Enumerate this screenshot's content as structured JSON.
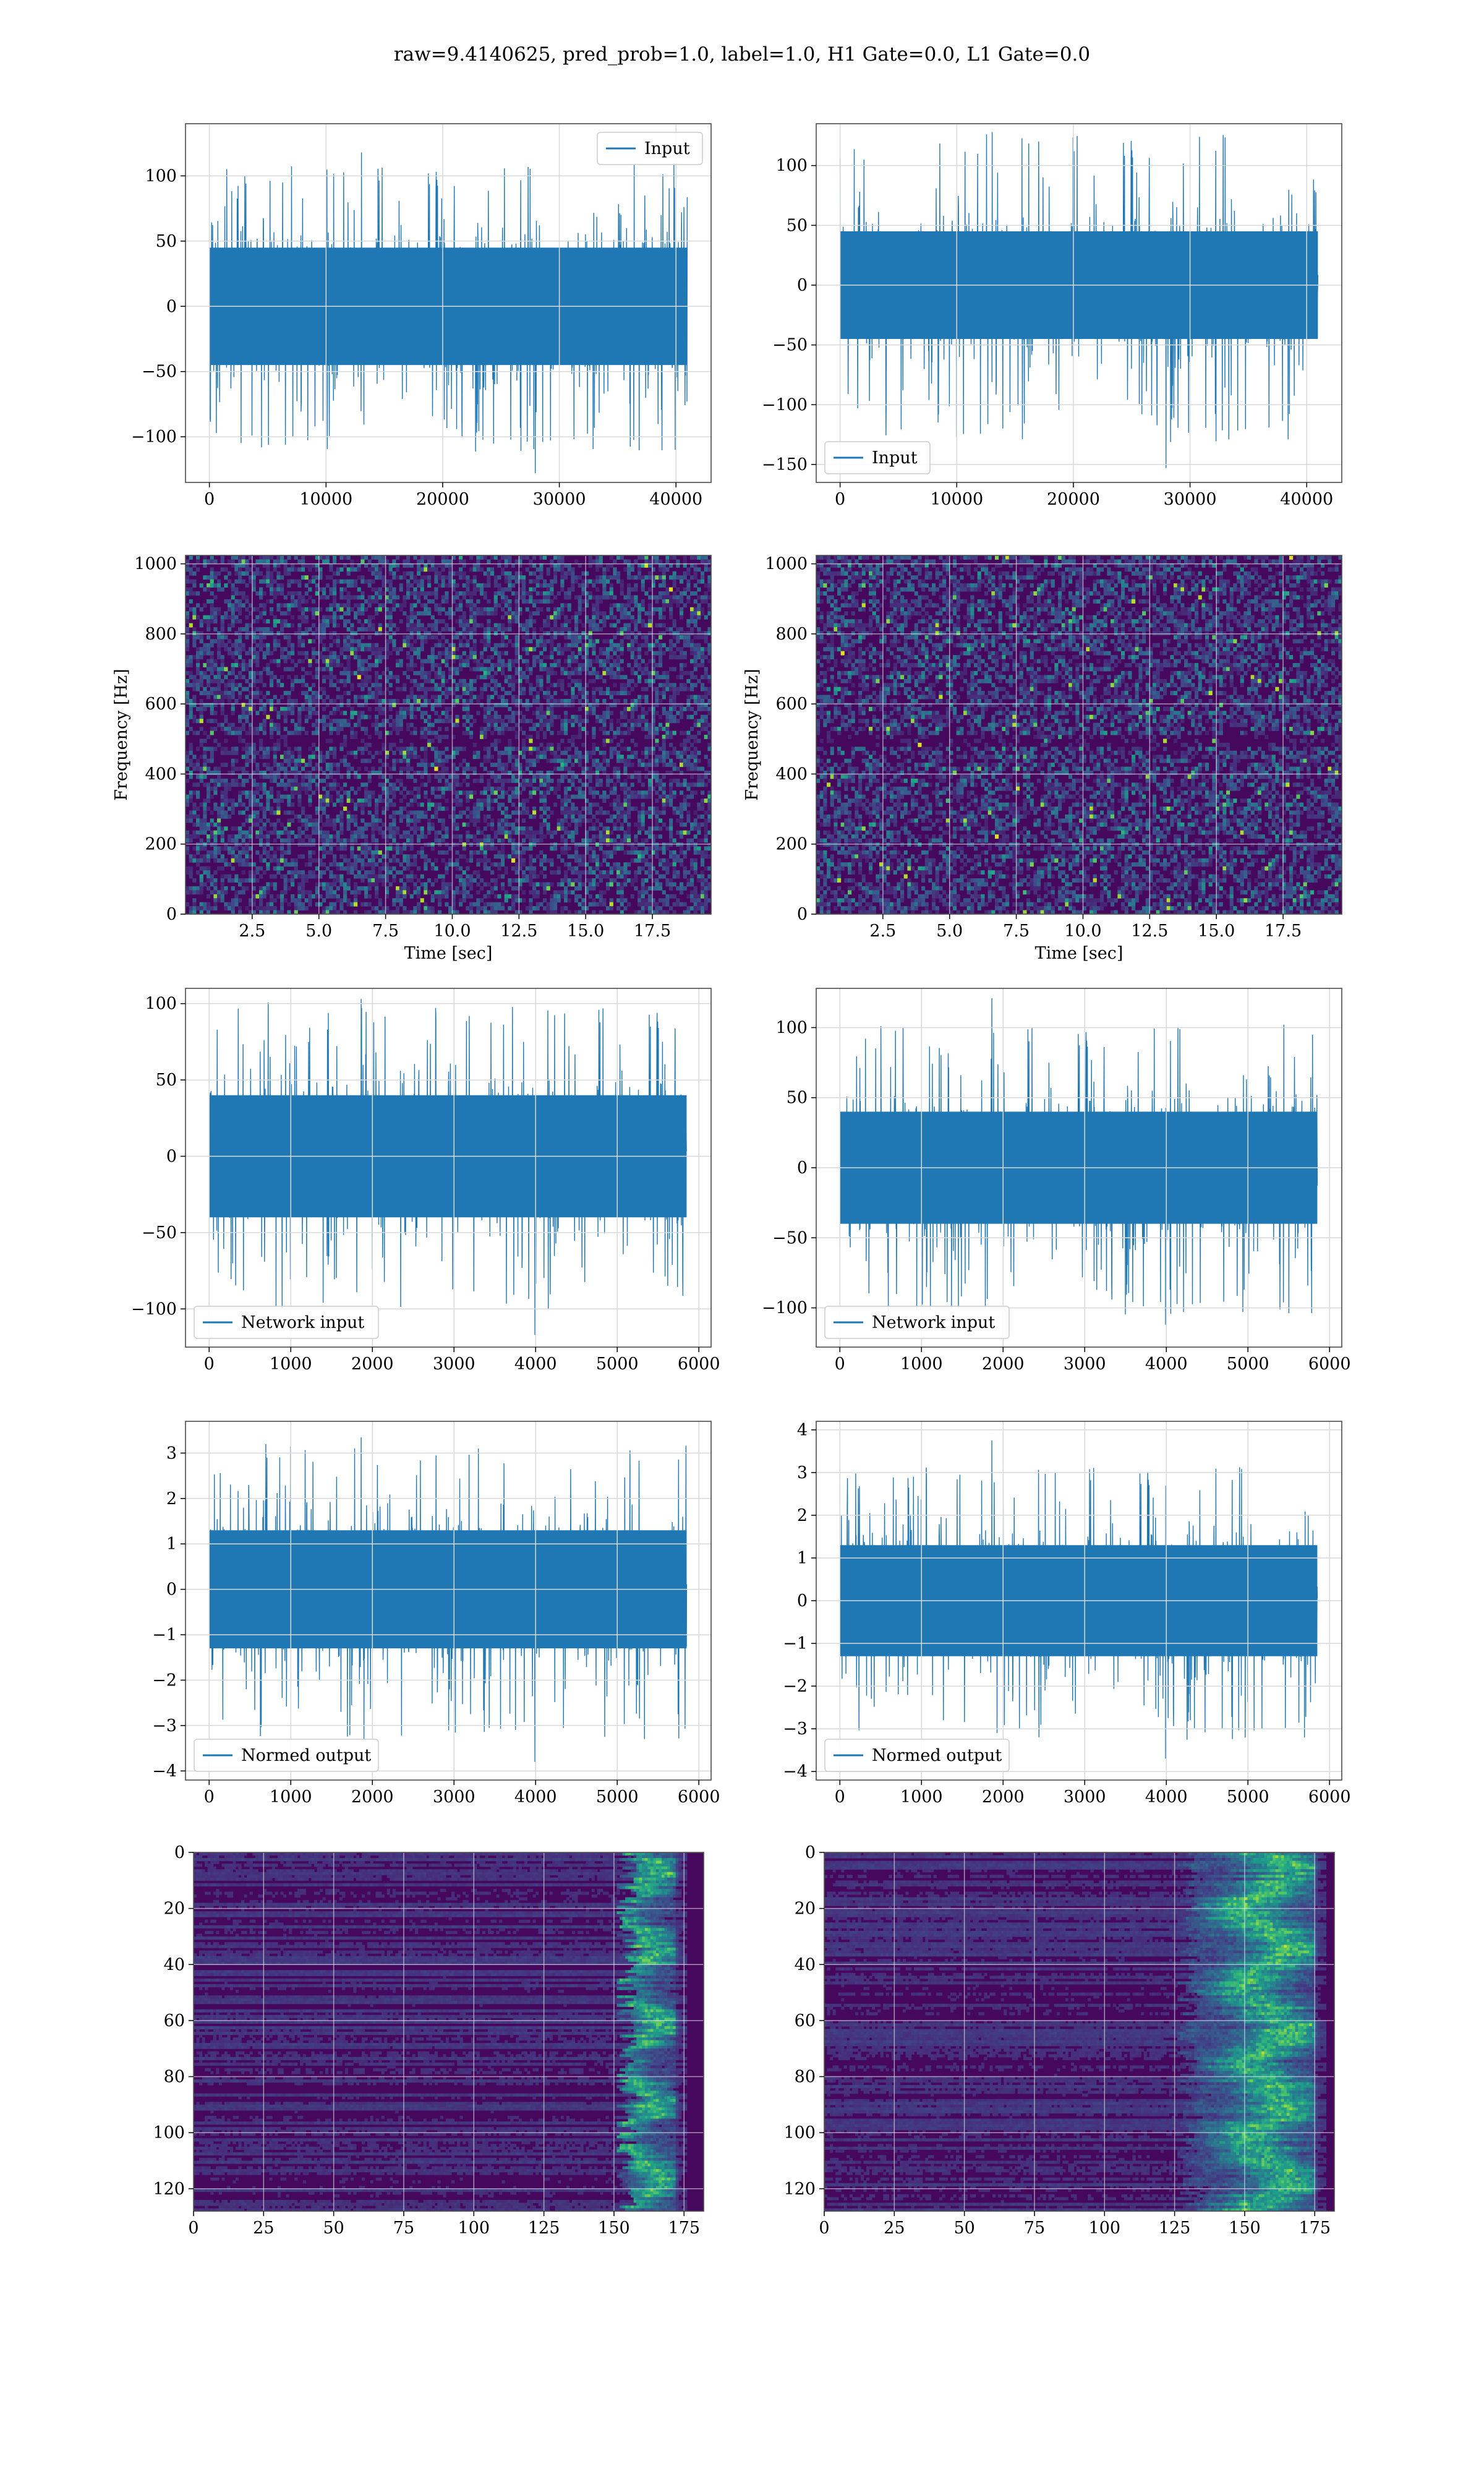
{
  "suptitle": "raw=9.4140625, pred_prob=1.0, label=1.0, H1 Gate=0.0, L1 Gate=0.0",
  "colors": {
    "line": "#1f77b4",
    "grid": "#d9d9d9",
    "axes": "#4a4a4a",
    "bg": "#ffffff"
  },
  "chart_data": [
    {
      "id": "r1c1",
      "type": "line",
      "series": [
        {
          "name": "Input"
        }
      ],
      "legend": "upper right",
      "x_range": [
        0,
        40960
      ],
      "xlim": [
        -2048,
        43008
      ],
      "ylim": [
        -135,
        140
      ],
      "xticks": [
        0,
        10000,
        20000,
        30000,
        40000
      ],
      "xtick_labels": [
        "0",
        "10000",
        "20000",
        "30000",
        "40000"
      ],
      "yticks": [
        -100,
        -50,
        0,
        50,
        100
      ],
      "ytick_labels": [
        "−100",
        "−50",
        "0",
        "50",
        "100"
      ],
      "envelope": {
        "body": [
          -45,
          45
        ],
        "peaks": [
          -128,
          118
        ]
      },
      "grid": true
    },
    {
      "id": "r1c2",
      "type": "line",
      "series": [
        {
          "name": "Input"
        }
      ],
      "legend": "lower left",
      "x_range": [
        0,
        40960
      ],
      "xlim": [
        -2048,
        43008
      ],
      "ylim": [
        -165,
        135
      ],
      "xticks": [
        0,
        10000,
        20000,
        30000,
        40000
      ],
      "xtick_labels": [
        "0",
        "10000",
        "20000",
        "30000",
        "40000"
      ],
      "yticks": [
        -150,
        -100,
        -50,
        0,
        50,
        100
      ],
      "ytick_labels": [
        "−150",
        "−100",
        "−50",
        "0",
        "50",
        "100"
      ],
      "envelope": {
        "body": [
          -45,
          45
        ],
        "peaks": [
          -153,
          128
        ]
      },
      "grid": true
    },
    {
      "id": "r2c1",
      "type": "heatmap",
      "colormap": "viridis",
      "xlim": [
        0,
        19.7
      ],
      "ylim": [
        0,
        1024
      ],
      "xlabel": "Time [sec]",
      "ylabel": "Frequency [Hz]",
      "xticks": [
        2.5,
        5.0,
        7.5,
        10.0,
        12.5,
        15.0,
        17.5
      ],
      "xtick_labels": [
        "2.5",
        "5.0",
        "7.5",
        "10.0",
        "12.5",
        "15.0",
        "17.5"
      ],
      "yticks": [
        0,
        200,
        400,
        600,
        800,
        1000
      ],
      "ytick_labels": [
        "0",
        "200",
        "400",
        "600",
        "800",
        "1000"
      ],
      "grid": true
    },
    {
      "id": "r2c2",
      "type": "heatmap",
      "colormap": "viridis",
      "xlim": [
        0,
        19.7
      ],
      "ylim": [
        0,
        1024
      ],
      "xlabel": "Time [sec]",
      "ylabel": "Frequency [Hz]",
      "xticks": [
        2.5,
        5.0,
        7.5,
        10.0,
        12.5,
        15.0,
        17.5
      ],
      "xtick_labels": [
        "2.5",
        "5.0",
        "7.5",
        "10.0",
        "12.5",
        "15.0",
        "17.5"
      ],
      "yticks": [
        0,
        200,
        400,
        600,
        800,
        1000
      ],
      "ytick_labels": [
        "0",
        "200",
        "400",
        "600",
        "800",
        "1000"
      ],
      "grid": true
    },
    {
      "id": "r3c1",
      "type": "line",
      "series": [
        {
          "name": "Network input"
        }
      ],
      "legend": "lower left",
      "x_range": [
        0,
        5850
      ],
      "xlim": [
        -290,
        6150
      ],
      "ylim": [
        -125,
        110
      ],
      "xticks": [
        0,
        1000,
        2000,
        3000,
        4000,
        5000,
        6000
      ],
      "xtick_labels": [
        "0",
        "1000",
        "2000",
        "3000",
        "4000",
        "5000",
        "6000"
      ],
      "yticks": [
        -100,
        -50,
        0,
        50,
        100
      ],
      "ytick_labels": [
        "−100",
        "−50",
        "0",
        "50",
        "100"
      ],
      "envelope": {
        "body": [
          -40,
          40
        ],
        "peaks": [
          -117,
          103
        ]
      },
      "grid": true
    },
    {
      "id": "r3c2",
      "type": "line",
      "series": [
        {
          "name": "Network input"
        }
      ],
      "legend": "lower left",
      "x_range": [
        0,
        5850
      ],
      "xlim": [
        -290,
        6150
      ],
      "ylim": [
        -128,
        128
      ],
      "xticks": [
        0,
        1000,
        2000,
        3000,
        4000,
        5000,
        6000
      ],
      "xtick_labels": [
        "0",
        "1000",
        "2000",
        "3000",
        "4000",
        "5000",
        "6000"
      ],
      "yticks": [
        -100,
        -50,
        0,
        50,
        100
      ],
      "ytick_labels": [
        "−100",
        "−50",
        "0",
        "50",
        "100"
      ],
      "envelope": {
        "body": [
          -40,
          40
        ],
        "peaks": [
          -112,
          121
        ]
      },
      "grid": true
    },
    {
      "id": "r4c1",
      "type": "line",
      "series": [
        {
          "name": "Normed output"
        }
      ],
      "legend": "lower left",
      "x_range": [
        0,
        5850
      ],
      "xlim": [
        -290,
        6150
      ],
      "ylim": [
        -4.2,
        3.7
      ],
      "xticks": [
        0,
        1000,
        2000,
        3000,
        4000,
        5000,
        6000
      ],
      "xtick_labels": [
        "0",
        "1000",
        "2000",
        "3000",
        "4000",
        "5000",
        "6000"
      ],
      "yticks": [
        -4,
        -3,
        -2,
        -1,
        0,
        1,
        2,
        3
      ],
      "ytick_labels": [
        "−4",
        "−3",
        "−2",
        "−1",
        "0",
        "1",
        "2",
        "3"
      ],
      "envelope": {
        "body": [
          -1.3,
          1.3
        ],
        "peaks": [
          -3.8,
          3.35
        ]
      },
      "grid": true
    },
    {
      "id": "r4c2",
      "type": "line",
      "series": [
        {
          "name": "Normed output"
        }
      ],
      "legend": "lower left",
      "x_range": [
        0,
        5850
      ],
      "xlim": [
        -290,
        6150
      ],
      "ylim": [
        -4.2,
        4.2
      ],
      "xticks": [
        0,
        1000,
        2000,
        3000,
        4000,
        5000,
        6000
      ],
      "xtick_labels": [
        "0",
        "1000",
        "2000",
        "3000",
        "4000",
        "5000",
        "6000"
      ],
      "yticks": [
        -4,
        -3,
        -2,
        -1,
        0,
        1,
        2,
        3,
        4
      ],
      "ytick_labels": [
        "−4",
        "−3",
        "−2",
        "−1",
        "0",
        "1",
        "2",
        "3",
        "4"
      ],
      "envelope": {
        "body": [
          -1.3,
          1.3
        ],
        "peaks": [
          -3.7,
          3.75
        ]
      },
      "grid": true
    },
    {
      "id": "r5c1",
      "type": "heatmap",
      "colormap": "viridis",
      "rows": 128,
      "cols": 182,
      "xlim": [
        0,
        182
      ],
      "ylim": [
        128,
        0
      ],
      "xticks": [
        0,
        25,
        50,
        75,
        100,
        125,
        150,
        175
      ],
      "xtick_labels": [
        "0",
        "25",
        "50",
        "75",
        "100",
        "125",
        "150",
        "175"
      ],
      "yticks": [
        0,
        20,
        40,
        60,
        80,
        100,
        120
      ],
      "ytick_labels": [
        "0",
        "20",
        "40",
        "60",
        "80",
        "100",
        "120"
      ],
      "bright_band_cols": [
        150,
        172
      ],
      "grid": true
    },
    {
      "id": "r5c2",
      "type": "heatmap",
      "colormap": "viridis",
      "rows": 128,
      "cols": 182,
      "xlim": [
        0,
        182
      ],
      "ylim": [
        128,
        0
      ],
      "xticks": [
        0,
        25,
        50,
        75,
        100,
        125,
        150,
        175
      ],
      "xtick_labels": [
        "0",
        "25",
        "50",
        "75",
        "100",
        "125",
        "150",
        "175"
      ],
      "yticks": [
        0,
        20,
        40,
        60,
        80,
        100,
        120
      ],
      "ytick_labels": [
        "0",
        "20",
        "40",
        "60",
        "80",
        "100",
        "120"
      ],
      "bright_band_cols": [
        125,
        175
      ],
      "grid": true
    }
  ]
}
